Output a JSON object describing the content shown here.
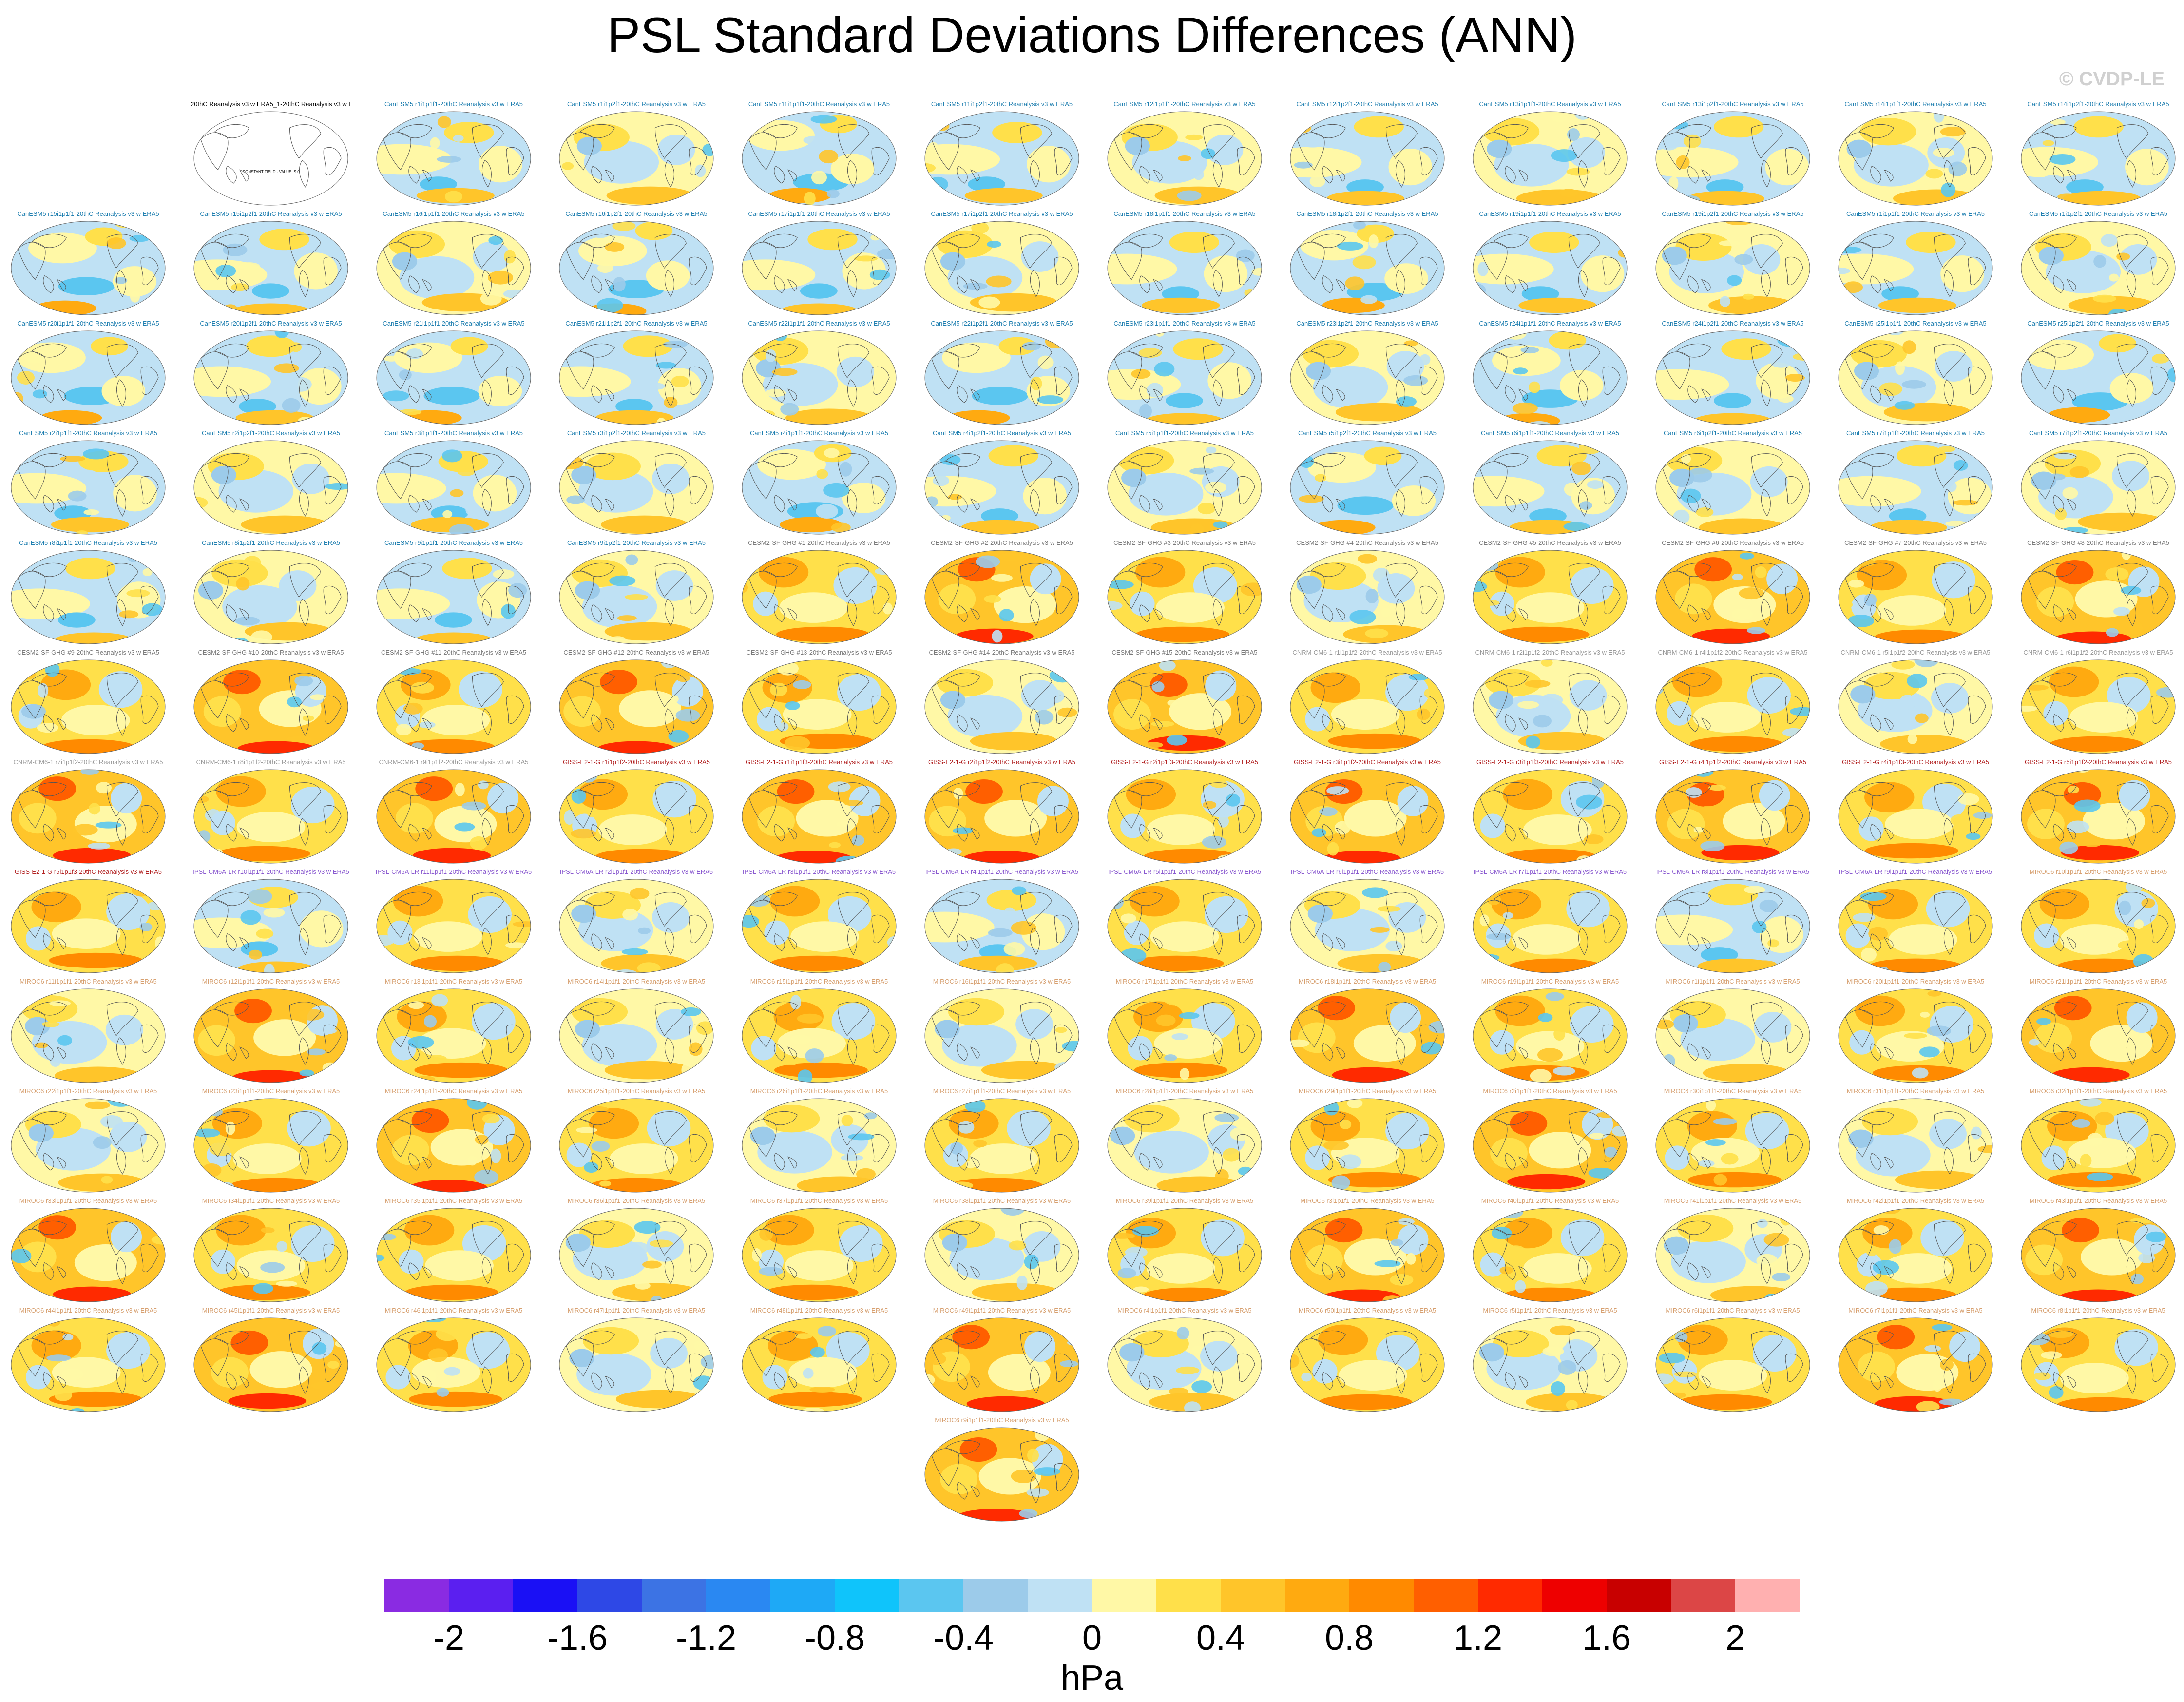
{
  "chart_data": {
    "type": "heatmap",
    "title": "PSL Standard Deviations Differences (ANN)",
    "watermark": "© CVDP-LE",
    "colorbar": {
      "label": "hPa",
      "ticks": [
        "-2",
        "-1.6",
        "-1.2",
        "-0.8",
        "-0.4",
        "0",
        "0.4",
        "0.8",
        "1.2",
        "1.6",
        "2"
      ],
      "range": [
        -2.2,
        2.2
      ],
      "step": 0.2,
      "colors": [
        "#8a2be2",
        "#5b1ff0",
        "#1a10f5",
        "#2e48e6",
        "#3c73e4",
        "#2a88f2",
        "#1ea9f6",
        "#0fc4fb",
        "#5bc6f0",
        "#9ccbea",
        "#bfe1f4",
        "#fff8a6",
        "#ffe04a",
        "#ffc52a",
        "#ffaa10",
        "#ff8a00",
        "#ff5f00",
        "#ff2a00",
        "#ee0000",
        "#c80000",
        "#dc4646",
        "#ffb0b0"
      ]
    },
    "panels": [
      {
        "label": "20thC Reanalysis v3 w ERA5_1-20thC Reanalysis v3 w ERA5",
        "group": "obs",
        "style": 0
      },
      {
        "label": "CanESM5 r1i1p1f1-20thC Reanalysis v3 w ERA5",
        "group": "CanESM5",
        "style": 1
      },
      {
        "label": "CanESM5 r1i1p2f1-20thC Reanalysis v3 w ERA5",
        "group": "CanESM5",
        "style": 2
      },
      {
        "label": "CanESM5 r11i1p1f1-20thC Reanalysis v3 w ERA5",
        "group": "CanESM5",
        "style": 3
      },
      {
        "label": "CanESM5 r11i1p2f1-20thC Reanalysis v3 w ERA5",
        "group": "CanESM5",
        "style": 1
      },
      {
        "label": "CanESM5 r12i1p1f1-20thC Reanalysis v3 w ERA5",
        "group": "CanESM5",
        "style": 2
      },
      {
        "label": "CanESM5 r12i1p2f1-20thC Reanalysis v3 w ERA5",
        "group": "CanESM5",
        "style": 1
      },
      {
        "label": "CanESM5 r13i1p1f1-20thC Reanalysis v3 w ERA5",
        "group": "CanESM5",
        "style": 2
      },
      {
        "label": "CanESM5 r13i1p2f1-20thC Reanalysis v3 w ERA5",
        "group": "CanESM5",
        "style": 1
      },
      {
        "label": "CanESM5 r14i1p1f1-20thC Reanalysis v3 w ERA5",
        "group": "CanESM5",
        "style": 2
      },
      {
        "label": "CanESM5 r14i1p2f1-20thC Reanalysis v3 w ERA5",
        "group": "CanESM5",
        "style": 1
      },
      {
        "label": "CanESM5 r15i1p1f1-20thC Reanalysis v3 w ERA5",
        "group": "CanESM5",
        "style": 3
      },
      {
        "label": "CanESM5 r15i1p2f1-20thC Reanalysis v3 w ERA5",
        "group": "CanESM5",
        "style": 1
      },
      {
        "label": "CanESM5 r16i1p1f1-20thC Reanalysis v3 w ERA5",
        "group": "CanESM5",
        "style": 2
      },
      {
        "label": "CanESM5 r16i1p2f1-20thC Reanalysis v3 w ERA5",
        "group": "CanESM5",
        "style": 3
      },
      {
        "label": "CanESM5 r17i1p1f1-20thC Reanalysis v3 w ERA5",
        "group": "CanESM5",
        "style": 1
      },
      {
        "label": "CanESM5 r17i1p2f1-20thC Reanalysis v3 w ERA5",
        "group": "CanESM5",
        "style": 2
      },
      {
        "label": "CanESM5 r18i1p1f1-20thC Reanalysis v3 w ERA5",
        "group": "CanESM5",
        "style": 1
      },
      {
        "label": "CanESM5 r18i1p2f1-20thC Reanalysis v3 w ERA5",
        "group": "CanESM5",
        "style": 3
      },
      {
        "label": "CanESM5 r19i1p1f1-20thC Reanalysis v3 w ERA5",
        "group": "CanESM5",
        "style": 1
      },
      {
        "label": "CanESM5 r19i1p2f1-20thC Reanalysis v3 w ERA5",
        "group": "CanESM5",
        "style": 2
      },
      {
        "label": "CanESM5 r1i1p1f1-20thC Reanalysis v3 w ERA5",
        "group": "CanESM5",
        "style": 1
      },
      {
        "label": "CanESM5 r1i1p2f1-20thC Reanalysis v3 w ERA5",
        "group": "CanESM5",
        "style": 2
      },
      {
        "label": "CanESM5 r20i1p1f1-20thC Reanalysis v3 w ERA5",
        "group": "CanESM5",
        "style": 3
      },
      {
        "label": "CanESM5 r20i1p2f1-20thC Reanalysis v3 w ERA5",
        "group": "CanESM5",
        "style": 1
      },
      {
        "label": "CanESM5 r21i1p1f1-20thC Reanalysis v3 w ERA5",
        "group": "CanESM5",
        "style": 3
      },
      {
        "label": "CanESM5 r21i1p2f1-20thC Reanalysis v3 w ERA5",
        "group": "CanESM5",
        "style": 1
      },
      {
        "label": "CanESM5 r22i1p1f1-20thC Reanalysis v3 w ERA5",
        "group": "CanESM5",
        "style": 2
      },
      {
        "label": "CanESM5 r22i1p2f1-20thC Reanalysis v3 w ERA5",
        "group": "CanESM5",
        "style": 3
      },
      {
        "label": "CanESM5 r23i1p1f1-20thC Reanalysis v3 w ERA5",
        "group": "CanESM5",
        "style": 1
      },
      {
        "label": "CanESM5 r23i1p2f1-20thC Reanalysis v3 w ERA5",
        "group": "CanESM5",
        "style": 2
      },
      {
        "label": "CanESM5 r24i1p1f1-20thC Reanalysis v3 w ERA5",
        "group": "CanESM5",
        "style": 3
      },
      {
        "label": "CanESM5 r24i1p2f1-20thC Reanalysis v3 w ERA5",
        "group": "CanESM5",
        "style": 1
      },
      {
        "label": "CanESM5 r25i1p1f1-20thC Reanalysis v3 w ERA5",
        "group": "CanESM5",
        "style": 2
      },
      {
        "label": "CanESM5 r25i1p2f1-20thC Reanalysis v3 w ERA5",
        "group": "CanESM5",
        "style": 3
      },
      {
        "label": "CanESM5 r2i1p1f1-20thC Reanalysis v3 w ERA5",
        "group": "CanESM5",
        "style": 1
      },
      {
        "label": "CanESM5 r2i1p2f1-20thC Reanalysis v3 w ERA5",
        "group": "CanESM5",
        "style": 2
      },
      {
        "label": "CanESM5 r3i1p1f1-20thC Reanalysis v3 w ERA5",
        "group": "CanESM5",
        "style": 1
      },
      {
        "label": "CanESM5 r3i1p2f1-20thC Reanalysis v3 w ERA5",
        "group": "CanESM5",
        "style": 2
      },
      {
        "label": "CanESM5 r4i1p1f1-20thC Reanalysis v3 w ERA5",
        "group": "CanESM5",
        "style": 3
      },
      {
        "label": "CanESM5 r4i1p2f1-20thC Reanalysis v3 w ERA5",
        "group": "CanESM5",
        "style": 1
      },
      {
        "label": "CanESM5 r5i1p1f1-20thC Reanalysis v3 w ERA5",
        "group": "CanESM5",
        "style": 2
      },
      {
        "label": "CanESM5 r5i1p2f1-20thC Reanalysis v3 w ERA5",
        "group": "CanESM5",
        "style": 3
      },
      {
        "label": "CanESM5 r6i1p1f1-20thC Reanalysis v3 w ERA5",
        "group": "CanESM5",
        "style": 1
      },
      {
        "label": "CanESM5 r6i1p2f1-20thC Reanalysis v3 w ERA5",
        "group": "CanESM5",
        "style": 2
      },
      {
        "label": "CanESM5 r7i1p1f1-20thC Reanalysis v3 w ERA5",
        "group": "CanESM5",
        "style": 1
      },
      {
        "label": "CanESM5 r7i1p2f1-20thC Reanalysis v3 w ERA5",
        "group": "CanESM5",
        "style": 2
      },
      {
        "label": "CanESM5 r8i1p1f1-20thC Reanalysis v3 w ERA5",
        "group": "CanESM5",
        "style": 1
      },
      {
        "label": "CanESM5 r8i1p2f1-20thC Reanalysis v3 w ERA5",
        "group": "CanESM5",
        "style": 2
      },
      {
        "label": "CanESM5 r9i1p1f1-20thC Reanalysis v3 w ERA5",
        "group": "CanESM5",
        "style": 1
      },
      {
        "label": "CanESM5 r9i1p2f1-20thC Reanalysis v3 w ERA5",
        "group": "CanESM5",
        "style": 2
      },
      {
        "label": "CESM2-SF-GHG #1-20thC Reanalysis v3 w ERA5",
        "group": "CESM2",
        "style": 4
      },
      {
        "label": "CESM2-SF-GHG #2-20thC Reanalysis v3 w ERA5",
        "group": "CESM2",
        "style": 5
      },
      {
        "label": "CESM2-SF-GHG #3-20thC Reanalysis v3 w ERA5",
        "group": "CESM2",
        "style": 4
      },
      {
        "label": "CESM2-SF-GHG #4-20thC Reanalysis v3 w ERA5",
        "group": "CESM2",
        "style": 2
      },
      {
        "label": "CESM2-SF-GHG #5-20thC Reanalysis v3 w ERA5",
        "group": "CESM2",
        "style": 4
      },
      {
        "label": "CESM2-SF-GHG #6-20thC Reanalysis v3 w ERA5",
        "group": "CESM2",
        "style": 5
      },
      {
        "label": "CESM2-SF-GHG #7-20thC Reanalysis v3 w ERA5",
        "group": "CESM2",
        "style": 4
      },
      {
        "label": "CESM2-SF-GHG #8-20thC Reanalysis v3 w ERA5",
        "group": "CESM2",
        "style": 5
      },
      {
        "label": "CESM2-SF-GHG #9-20thC Reanalysis v3 w ERA5",
        "group": "CESM2",
        "style": 4
      },
      {
        "label": "CESM2-SF-GHG #10-20thC Reanalysis v3 w ERA5",
        "group": "CESM2",
        "style": 5
      },
      {
        "label": "CESM2-SF-GHG #11-20thC Reanalysis v3 w ERA5",
        "group": "CESM2",
        "style": 4
      },
      {
        "label": "CESM2-SF-GHG #12-20thC Reanalysis v3 w ERA5",
        "group": "CESM2",
        "style": 5
      },
      {
        "label": "CESM2-SF-GHG #13-20thC Reanalysis v3 w ERA5",
        "group": "CESM2",
        "style": 4
      },
      {
        "label": "CESM2-SF-GHG #14-20thC Reanalysis v3 w ERA5",
        "group": "CESM2",
        "style": 2
      },
      {
        "label": "CESM2-SF-GHG #15-20thC Reanalysis v3 w ERA5",
        "group": "CESM2",
        "style": 5
      },
      {
        "label": "CNRM-CM6-1 r1i1p1f2-20thC Reanalysis v3 w ERA5",
        "group": "CNRM",
        "style": 4
      },
      {
        "label": "CNRM-CM6-1 r2i1p1f2-20thC Reanalysis v3 w ERA5",
        "group": "CNRM",
        "style": 2
      },
      {
        "label": "CNRM-CM6-1 r4i1p1f2-20thC Reanalysis v3 w ERA5",
        "group": "CNRM",
        "style": 4
      },
      {
        "label": "CNRM-CM6-1 r5i1p1f2-20thC Reanalysis v3 w ERA5",
        "group": "CNRM",
        "style": 2
      },
      {
        "label": "CNRM-CM6-1 r6i1p1f2-20thC Reanalysis v3 w ERA5",
        "group": "CNRM",
        "style": 4
      },
      {
        "label": "CNRM-CM6-1 r7i1p1f2-20thC Reanalysis v3 w ERA5",
        "group": "CNRM",
        "style": 5
      },
      {
        "label": "CNRM-CM6-1 r8i1p1f2-20thC Reanalysis v3 w ERA5",
        "group": "CNRM",
        "style": 4
      },
      {
        "label": "CNRM-CM6-1 r9i1p1f2-20thC Reanalysis v3 w ERA5",
        "group": "CNRM",
        "style": 5
      },
      {
        "label": "GISS-E2-1-G r1i1p1f2-20thC Reanalysis v3 w ERA5",
        "group": "GISS",
        "style": 4
      },
      {
        "label": "GISS-E2-1-G r1i1p1f3-20thC Reanalysis v3 w ERA5",
        "group": "GISS",
        "style": 5
      },
      {
        "label": "GISS-E2-1-G r2i1p1f2-20thC Reanalysis v3 w ERA5",
        "group": "GISS",
        "style": 5
      },
      {
        "label": "GISS-E2-1-G r2i1p1f3-20thC Reanalysis v3 w ERA5",
        "group": "GISS",
        "style": 4
      },
      {
        "label": "GISS-E2-1-G r3i1p1f2-20thC Reanalysis v3 w ERA5",
        "group": "GISS",
        "style": 5
      },
      {
        "label": "GISS-E2-1-G r3i1p1f3-20thC Reanalysis v3 w ERA5",
        "group": "GISS",
        "style": 4
      },
      {
        "label": "GISS-E2-1-G r4i1p1f2-20thC Reanalysis v3 w ERA5",
        "group": "GISS",
        "style": 5
      },
      {
        "label": "GISS-E2-1-G r4i1p1f3-20thC Reanalysis v3 w ERA5",
        "group": "GISS",
        "style": 4
      },
      {
        "label": "GISS-E2-1-G r5i1p1f2-20thC Reanalysis v3 w ERA5",
        "group": "GISS",
        "style": 5
      },
      {
        "label": "GISS-E2-1-G r5i1p1f3-20thC Reanalysis v3 w ERA5",
        "group": "GISS",
        "style": 4
      },
      {
        "label": "IPSL-CM6A-LR r10i1p1f1-20thC Reanalysis v3 w ERA5",
        "group": "IPSL",
        "style": 1
      },
      {
        "label": "IPSL-CM6A-LR r11i1p1f1-20thC Reanalysis v3 w ERA5",
        "group": "IPSL",
        "style": 4
      },
      {
        "label": "IPSL-CM6A-LR r2i1p1f1-20thC Reanalysis v3 w ERA5",
        "group": "IPSL",
        "style": 2
      },
      {
        "label": "IPSL-CM6A-LR r3i1p1f1-20thC Reanalysis v3 w ERA5",
        "group": "IPSL",
        "style": 4
      },
      {
        "label": "IPSL-CM6A-LR r4i1p1f1-20thC Reanalysis v3 w ERA5",
        "group": "IPSL",
        "style": 1
      },
      {
        "label": "IPSL-CM6A-LR r5i1p1f1-20thC Reanalysis v3 w ERA5",
        "group": "IPSL",
        "style": 4
      },
      {
        "label": "IPSL-CM6A-LR r6i1p1f1-20thC Reanalysis v3 w ERA5",
        "group": "IPSL",
        "style": 2
      },
      {
        "label": "IPSL-CM6A-LR r7i1p1f1-20thC Reanalysis v3 w ERA5",
        "group": "IPSL",
        "style": 4
      },
      {
        "label": "IPSL-CM6A-LR r8i1p1f1-20thC Reanalysis v3 w ERA5",
        "group": "IPSL",
        "style": 1
      },
      {
        "label": "IPSL-CM6A-LR r9i1p1f1-20thC Reanalysis v3 w ERA5",
        "group": "IPSL",
        "style": 4
      },
      {
        "label": "MIROC6 r10i1p1f1-20thC Reanalysis v3 w ERA5",
        "group": "MIROC6",
        "style": 4
      },
      {
        "label": "MIROC6 r11i1p1f1-20thC Reanalysis v3 w ERA5",
        "group": "MIROC6",
        "style": 2
      },
      {
        "label": "MIROC6 r12i1p1f1-20thC Reanalysis v3 w ERA5",
        "group": "MIROC6",
        "style": 5
      },
      {
        "label": "MIROC6 r13i1p1f1-20thC Reanalysis v3 w ERA5",
        "group": "MIROC6",
        "style": 4
      },
      {
        "label": "MIROC6 r14i1p1f1-20thC Reanalysis v3 w ERA5",
        "group": "MIROC6",
        "style": 2
      },
      {
        "label": "MIROC6 r15i1p1f1-20thC Reanalysis v3 w ERA5",
        "group": "MIROC6",
        "style": 4
      },
      {
        "label": "MIROC6 r16i1p1f1-20thC Reanalysis v3 w ERA5",
        "group": "MIROC6",
        "style": 2
      },
      {
        "label": "MIROC6 r17i1p1f1-20thC Reanalysis v3 w ERA5",
        "group": "MIROC6",
        "style": 4
      },
      {
        "label": "MIROC6 r18i1p1f1-20thC Reanalysis v3 w ERA5",
        "group": "MIROC6",
        "style": 5
      },
      {
        "label": "MIROC6 r19i1p1f1-20thC Reanalysis v3 w ERA5",
        "group": "MIROC6",
        "style": 4
      },
      {
        "label": "MIROC6 r1i1p1f1-20thC Reanalysis v3 w ERA5",
        "group": "MIROC6",
        "style": 2
      },
      {
        "label": "MIROC6 r20i1p1f1-20thC Reanalysis v3 w ERA5",
        "group": "MIROC6",
        "style": 4
      },
      {
        "label": "MIROC6 r21i1p1f1-20thC Reanalysis v3 w ERA5",
        "group": "MIROC6",
        "style": 5
      },
      {
        "label": "MIROC6 r22i1p1f1-20thC Reanalysis v3 w ERA5",
        "group": "MIROC6",
        "style": 2
      },
      {
        "label": "MIROC6 r23i1p1f1-20thC Reanalysis v3 w ERA5",
        "group": "MIROC6",
        "style": 4
      },
      {
        "label": "MIROC6 r24i1p1f1-20thC Reanalysis v3 w ERA5",
        "group": "MIROC6",
        "style": 5
      },
      {
        "label": "MIROC6 r25i1p1f1-20thC Reanalysis v3 w ERA5",
        "group": "MIROC6",
        "style": 4
      },
      {
        "label": "MIROC6 r26i1p1f1-20thC Reanalysis v3 w ERA5",
        "group": "MIROC6",
        "style": 2
      },
      {
        "label": "MIROC6 r27i1p1f1-20thC Reanalysis v3 w ERA5",
        "group": "MIROC6",
        "style": 4
      },
      {
        "label": "MIROC6 r28i1p1f1-20thC Reanalysis v3 w ERA5",
        "group": "MIROC6",
        "style": 2
      },
      {
        "label": "MIROC6 r29i1p1f1-20thC Reanalysis v3 w ERA5",
        "group": "MIROC6",
        "style": 4
      },
      {
        "label": "MIROC6 r2i1p1f1-20thC Reanalysis v3 w ERA5",
        "group": "MIROC6",
        "style": 5
      },
      {
        "label": "MIROC6 r30i1p1f1-20thC Reanalysis v3 w ERA5",
        "group": "MIROC6",
        "style": 4
      },
      {
        "label": "MIROC6 r31i1p1f1-20thC Reanalysis v3 w ERA5",
        "group": "MIROC6",
        "style": 2
      },
      {
        "label": "MIROC6 r32i1p1f1-20thC Reanalysis v3 w ERA5",
        "group": "MIROC6",
        "style": 4
      },
      {
        "label": "MIROC6 r33i1p1f1-20thC Reanalysis v3 w ERA5",
        "group": "MIROC6",
        "style": 5
      },
      {
        "label": "MIROC6 r34i1p1f1-20thC Reanalysis v3 w ERA5",
        "group": "MIROC6",
        "style": 4
      },
      {
        "label": "MIROC6 r35i1p1f1-20thC Reanalysis v3 w ERA5",
        "group": "MIROC6",
        "style": 4
      },
      {
        "label": "MIROC6 r36i1p1f1-20thC Reanalysis v3 w ERA5",
        "group": "MIROC6",
        "style": 2
      },
      {
        "label": "MIROC6 r37i1p1f1-20thC Reanalysis v3 w ERA5",
        "group": "MIROC6",
        "style": 4
      },
      {
        "label": "MIROC6 r38i1p1f1-20thC Reanalysis v3 w ERA5",
        "group": "MIROC6",
        "style": 2
      },
      {
        "label": "MIROC6 r39i1p1f1-20thC Reanalysis v3 w ERA5",
        "group": "MIROC6",
        "style": 4
      },
      {
        "label": "MIROC6 r3i1p1f1-20thC Reanalysis v3 w ERA5",
        "group": "MIROC6",
        "style": 5
      },
      {
        "label": "MIROC6 r40i1p1f1-20thC Reanalysis v3 w ERA5",
        "group": "MIROC6",
        "style": 4
      },
      {
        "label": "MIROC6 r41i1p1f1-20thC Reanalysis v3 w ERA5",
        "group": "MIROC6",
        "style": 2
      },
      {
        "label": "MIROC6 r42i1p1f1-20thC Reanalysis v3 w ERA5",
        "group": "MIROC6",
        "style": 4
      },
      {
        "label": "MIROC6 r43i1p1f1-20thC Reanalysis v3 w ERA5",
        "group": "MIROC6",
        "style": 5
      },
      {
        "label": "MIROC6 r44i1p1f1-20thC Reanalysis v3 w ERA5",
        "group": "MIROC6",
        "style": 4
      },
      {
        "label": "MIROC6 r45i1p1f1-20thC Reanalysis v3 w ERA5",
        "group": "MIROC6",
        "style": 5
      },
      {
        "label": "MIROC6 r46i1p1f1-20thC Reanalysis v3 w ERA5",
        "group": "MIROC6",
        "style": 4
      },
      {
        "label": "MIROC6 r47i1p1f1-20thC Reanalysis v3 w ERA5",
        "group": "MIROC6",
        "style": 2
      },
      {
        "label": "MIROC6 r48i1p1f1-20thC Reanalysis v3 w ERA5",
        "group": "MIROC6",
        "style": 4
      },
      {
        "label": "MIROC6 r49i1p1f1-20thC Reanalysis v3 w ERA5",
        "group": "MIROC6",
        "style": 5
      },
      {
        "label": "MIROC6 r4i1p1f1-20thC Reanalysis v3 w ERA5",
        "group": "MIROC6",
        "style": 2
      },
      {
        "label": "MIROC6 r50i1p1f1-20thC Reanalysis v3 w ERA5",
        "group": "MIROC6",
        "style": 4
      },
      {
        "label": "MIROC6 r5i1p1f1-20thC Reanalysis v3 w ERA5",
        "group": "MIROC6",
        "style": 2
      },
      {
        "label": "MIROC6 r6i1p1f1-20thC Reanalysis v3 w ERA5",
        "group": "MIROC6",
        "style": 4
      },
      {
        "label": "MIROC6 r7i1p1f1-20thC Reanalysis v3 w ERA5",
        "group": "MIROC6",
        "style": 5
      },
      {
        "label": "MIROC6 r8i1p1f1-20thC Reanalysis v3 w ERA5",
        "group": "MIROC6",
        "style": 4
      },
      {
        "label": "MIROC6 r9i1p1f1-20thC Reanalysis v3 w ERA5",
        "group": "MIROC6",
        "style": 5
      }
    ],
    "obs_panel_note": "CONSTANT FIELD - VALUE IS 0",
    "group_colors": {
      "obs": "#000000",
      "CanESM5": "#1f7fb0",
      "CESM2": "#7a7a7a",
      "CNRM": "#9a9a9a",
      "GISS": "#b22222",
      "IPSL": "#8a5ad0",
      "MIROC6": "#d7a070"
    }
  }
}
